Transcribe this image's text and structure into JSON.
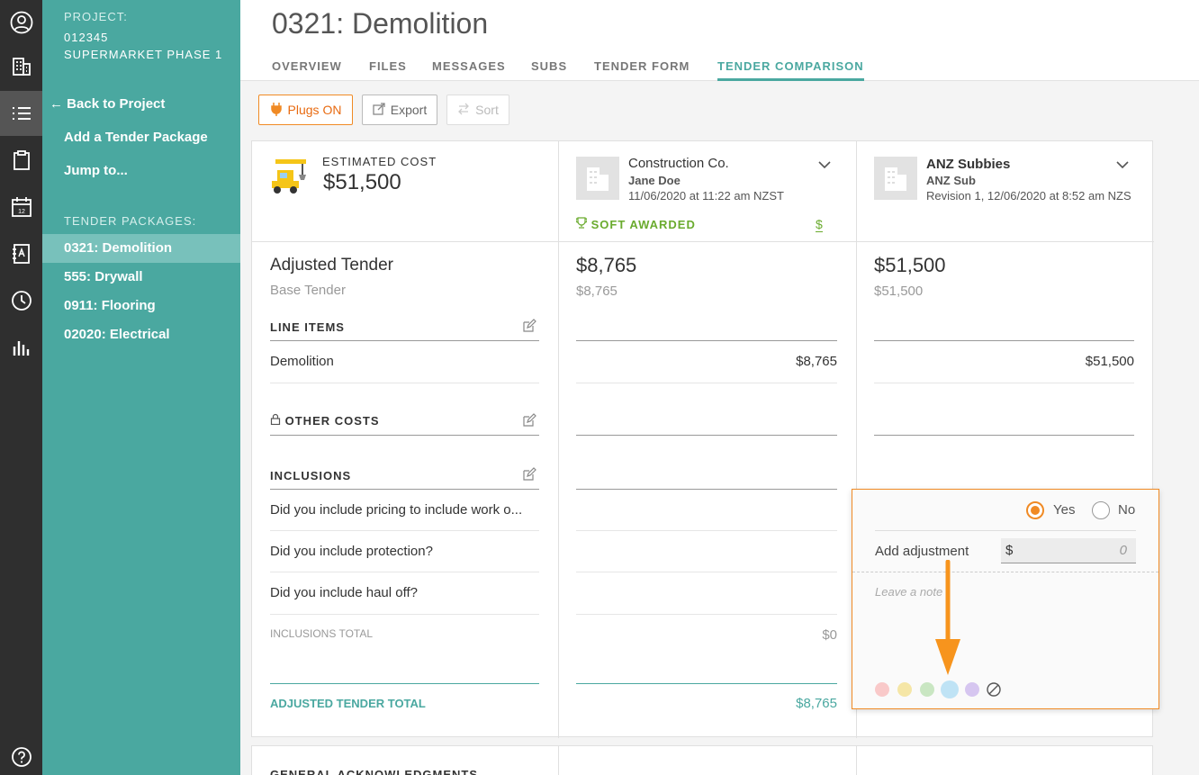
{
  "sidebar": {
    "project_label": "PROJECT:",
    "project_code": "012345",
    "project_name": "SUPERMARKET PHASE 1",
    "back_link": "Back to Project",
    "add_package": "Add a Tender Package",
    "jump_to": "Jump to...",
    "packages_label": "TENDER PACKAGES:",
    "packages": [
      {
        "label": "0321: Demolition",
        "active": true
      },
      {
        "label": "555: Drywall",
        "active": false
      },
      {
        "label": "0911: Flooring",
        "active": false
      },
      {
        "label": "02020: Electrical",
        "active": false
      }
    ]
  },
  "rail_icons": [
    "user-icon",
    "building-icon",
    "list-icon",
    "clipboard-icon",
    "calendar-icon",
    "contacts-icon",
    "clock-icon",
    "bar-chart-icon",
    "help-icon"
  ],
  "calendar_day": "12",
  "header": {
    "title": "0321: Demolition",
    "tabs": [
      "OVERVIEW",
      "FILES",
      "MESSAGES",
      "SUBS",
      "TENDER FORM",
      "TENDER COMPARISON"
    ],
    "active_tab": "TENDER COMPARISON"
  },
  "toolbar": {
    "plugs": "Plugs ON",
    "export": "Export",
    "sort": "Sort"
  },
  "estimate": {
    "label": "ESTIMATED COST",
    "value": "$51,500"
  },
  "labels": {
    "adjusted_tender": "Adjusted Tender",
    "base_tender": "Base Tender",
    "line_items": "LINE ITEMS",
    "demolition": "Demolition",
    "other_costs": "OTHER COSTS",
    "inclusions": "INCLUSIONS",
    "q1": "Did you include pricing to include work o...",
    "q2": "Did you include protection?",
    "q3": "Did you include haul off?",
    "inclusions_total": "INCLUSIONS TOTAL",
    "adjusted_total": "ADJUSTED TENDER TOTAL",
    "general_ack": "GENERAL ACKNOWLEDGMENTS"
  },
  "subs": [
    {
      "company": "Construction Co.",
      "contact": "Jane Doe",
      "date": "11/06/2020 at 11:22 am NZST",
      "status": "SOFT AWARDED",
      "adjusted": "$8,765",
      "base": "$8,765",
      "demolition": "$8,765",
      "inclusions_total": "$0",
      "adjusted_total": "$8,765"
    },
    {
      "company": "ANZ Subbies",
      "contact": "ANZ Sub",
      "date": "Revision 1, 12/06/2020 at 8:52 am NZS",
      "adjusted": "$51,500",
      "base": "$51,500",
      "demolition": "$51,500"
    }
  ],
  "popover": {
    "yes": "Yes",
    "no": "No",
    "selected": "Yes",
    "add_adjustment": "Add adjustment",
    "currency": "$",
    "placeholder": "0",
    "note_placeholder": "Leave a note",
    "colors": [
      "#f9c9c9",
      "#f5e6a6",
      "#c9e6c2",
      "#bfe3f5",
      "#d6c6f0"
    ],
    "selected_color": "#bfe3f5"
  }
}
